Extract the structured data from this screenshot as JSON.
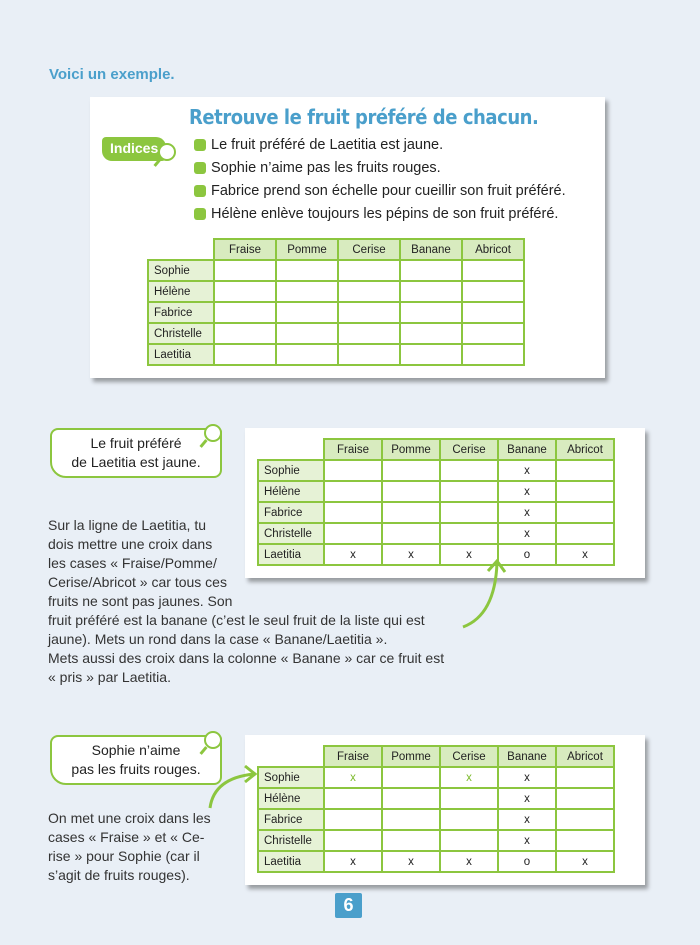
{
  "intro": "Voici un exemple.",
  "exercise": {
    "title": "Retrouve le fruit préféré de chacun.",
    "badge": "Indices",
    "clues": [
      "Le fruit préféré de Laetitia est jaune.",
      "Sophie n’aime pas les fruits rouges.",
      "Fabrice prend son échelle pour cueillir son fruit préféré.",
      "Hélène enlève toujours les pépins de son fruit préféré."
    ]
  },
  "columns": [
    "Fraise",
    "Pomme",
    "Cerise",
    "Banane",
    "Abricot"
  ],
  "rows": [
    "Sophie",
    "Hélène",
    "Fabrice",
    "Christelle",
    "Laetitia"
  ],
  "table1": [
    [
      "",
      "",
      "",
      "",
      ""
    ],
    [
      "",
      "",
      "",
      "",
      ""
    ],
    [
      "",
      "",
      "",
      "",
      ""
    ],
    [
      "",
      "",
      "",
      "",
      ""
    ],
    [
      "",
      "",
      "",
      "",
      ""
    ]
  ],
  "step1": {
    "bubble": [
      "Le fruit préféré",
      "de Laetitia est jaune."
    ],
    "text_narrow": [
      "Sur la ligne de Laetitia, tu",
      "dois mettre une croix dans",
      "les cases « Fraise/Pomme/",
      "Cerise/Abricot » car tous ces",
      "fruits ne sont pas jaunes. Son"
    ],
    "text_wide": [
      "fruit préféré est la banane (c’est le seul fruit de la liste qui est",
      "jaune). Mets un rond dans la case « Banane/Laetitia ».",
      "Mets aussi des croix dans la colonne « Banane » car ce fruit est",
      "« pris » par Laetitia."
    ],
    "table": [
      [
        "",
        "",
        "",
        "x",
        ""
      ],
      [
        "",
        "",
        "",
        "x",
        ""
      ],
      [
        "",
        "",
        "",
        "x",
        ""
      ],
      [
        "",
        "",
        "",
        "x",
        ""
      ],
      [
        "x",
        "x",
        "x",
        "o",
        "x"
      ]
    ]
  },
  "step2": {
    "bubble": [
      "Sophie n’aime",
      "pas les fruits rouges."
    ],
    "text": [
      "On met une croix dans les",
      "cases « Fraise » et « Ce-",
      "rise » pour Sophie (car il",
      "s’agit de fruits rouges)."
    ],
    "table": [
      [
        "x",
        "",
        "x",
        "x",
        ""
      ],
      [
        "",
        "",
        "",
        "x",
        ""
      ],
      [
        "",
        "",
        "",
        "x",
        ""
      ],
      [
        "",
        "",
        "",
        "x",
        ""
      ],
      [
        "x",
        "x",
        "x",
        "o",
        "x"
      ]
    ],
    "highlight": [
      [
        0,
        0
      ],
      [
        0,
        2
      ]
    ]
  },
  "page_number": "6",
  "colors": {
    "accent_blue": "#4a9fcb",
    "accent_green": "#8cc63f"
  }
}
